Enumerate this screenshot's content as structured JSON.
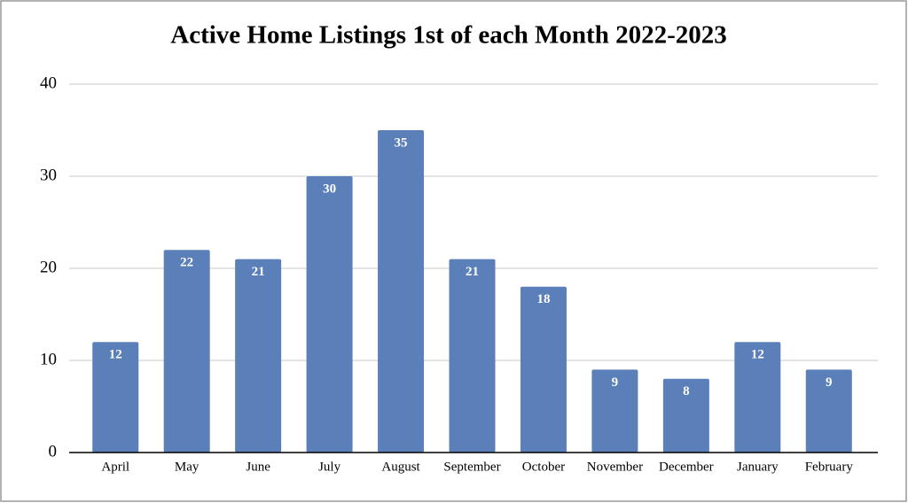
{
  "chart_data": {
    "type": "bar",
    "title": "Active Home Listings 1st of each Month  2022-2023",
    "categories": [
      "April",
      "May",
      "June",
      "July",
      "August",
      "September",
      "October",
      "November",
      "December",
      "January",
      "February"
    ],
    "values": [
      12,
      22,
      21,
      30,
      35,
      21,
      18,
      9,
      8,
      12,
      9
    ],
    "color": "#5b7fb8",
    "ylim": [
      0,
      40
    ],
    "yticks": [
      0,
      10,
      20,
      30,
      40
    ],
    "grid": true
  }
}
